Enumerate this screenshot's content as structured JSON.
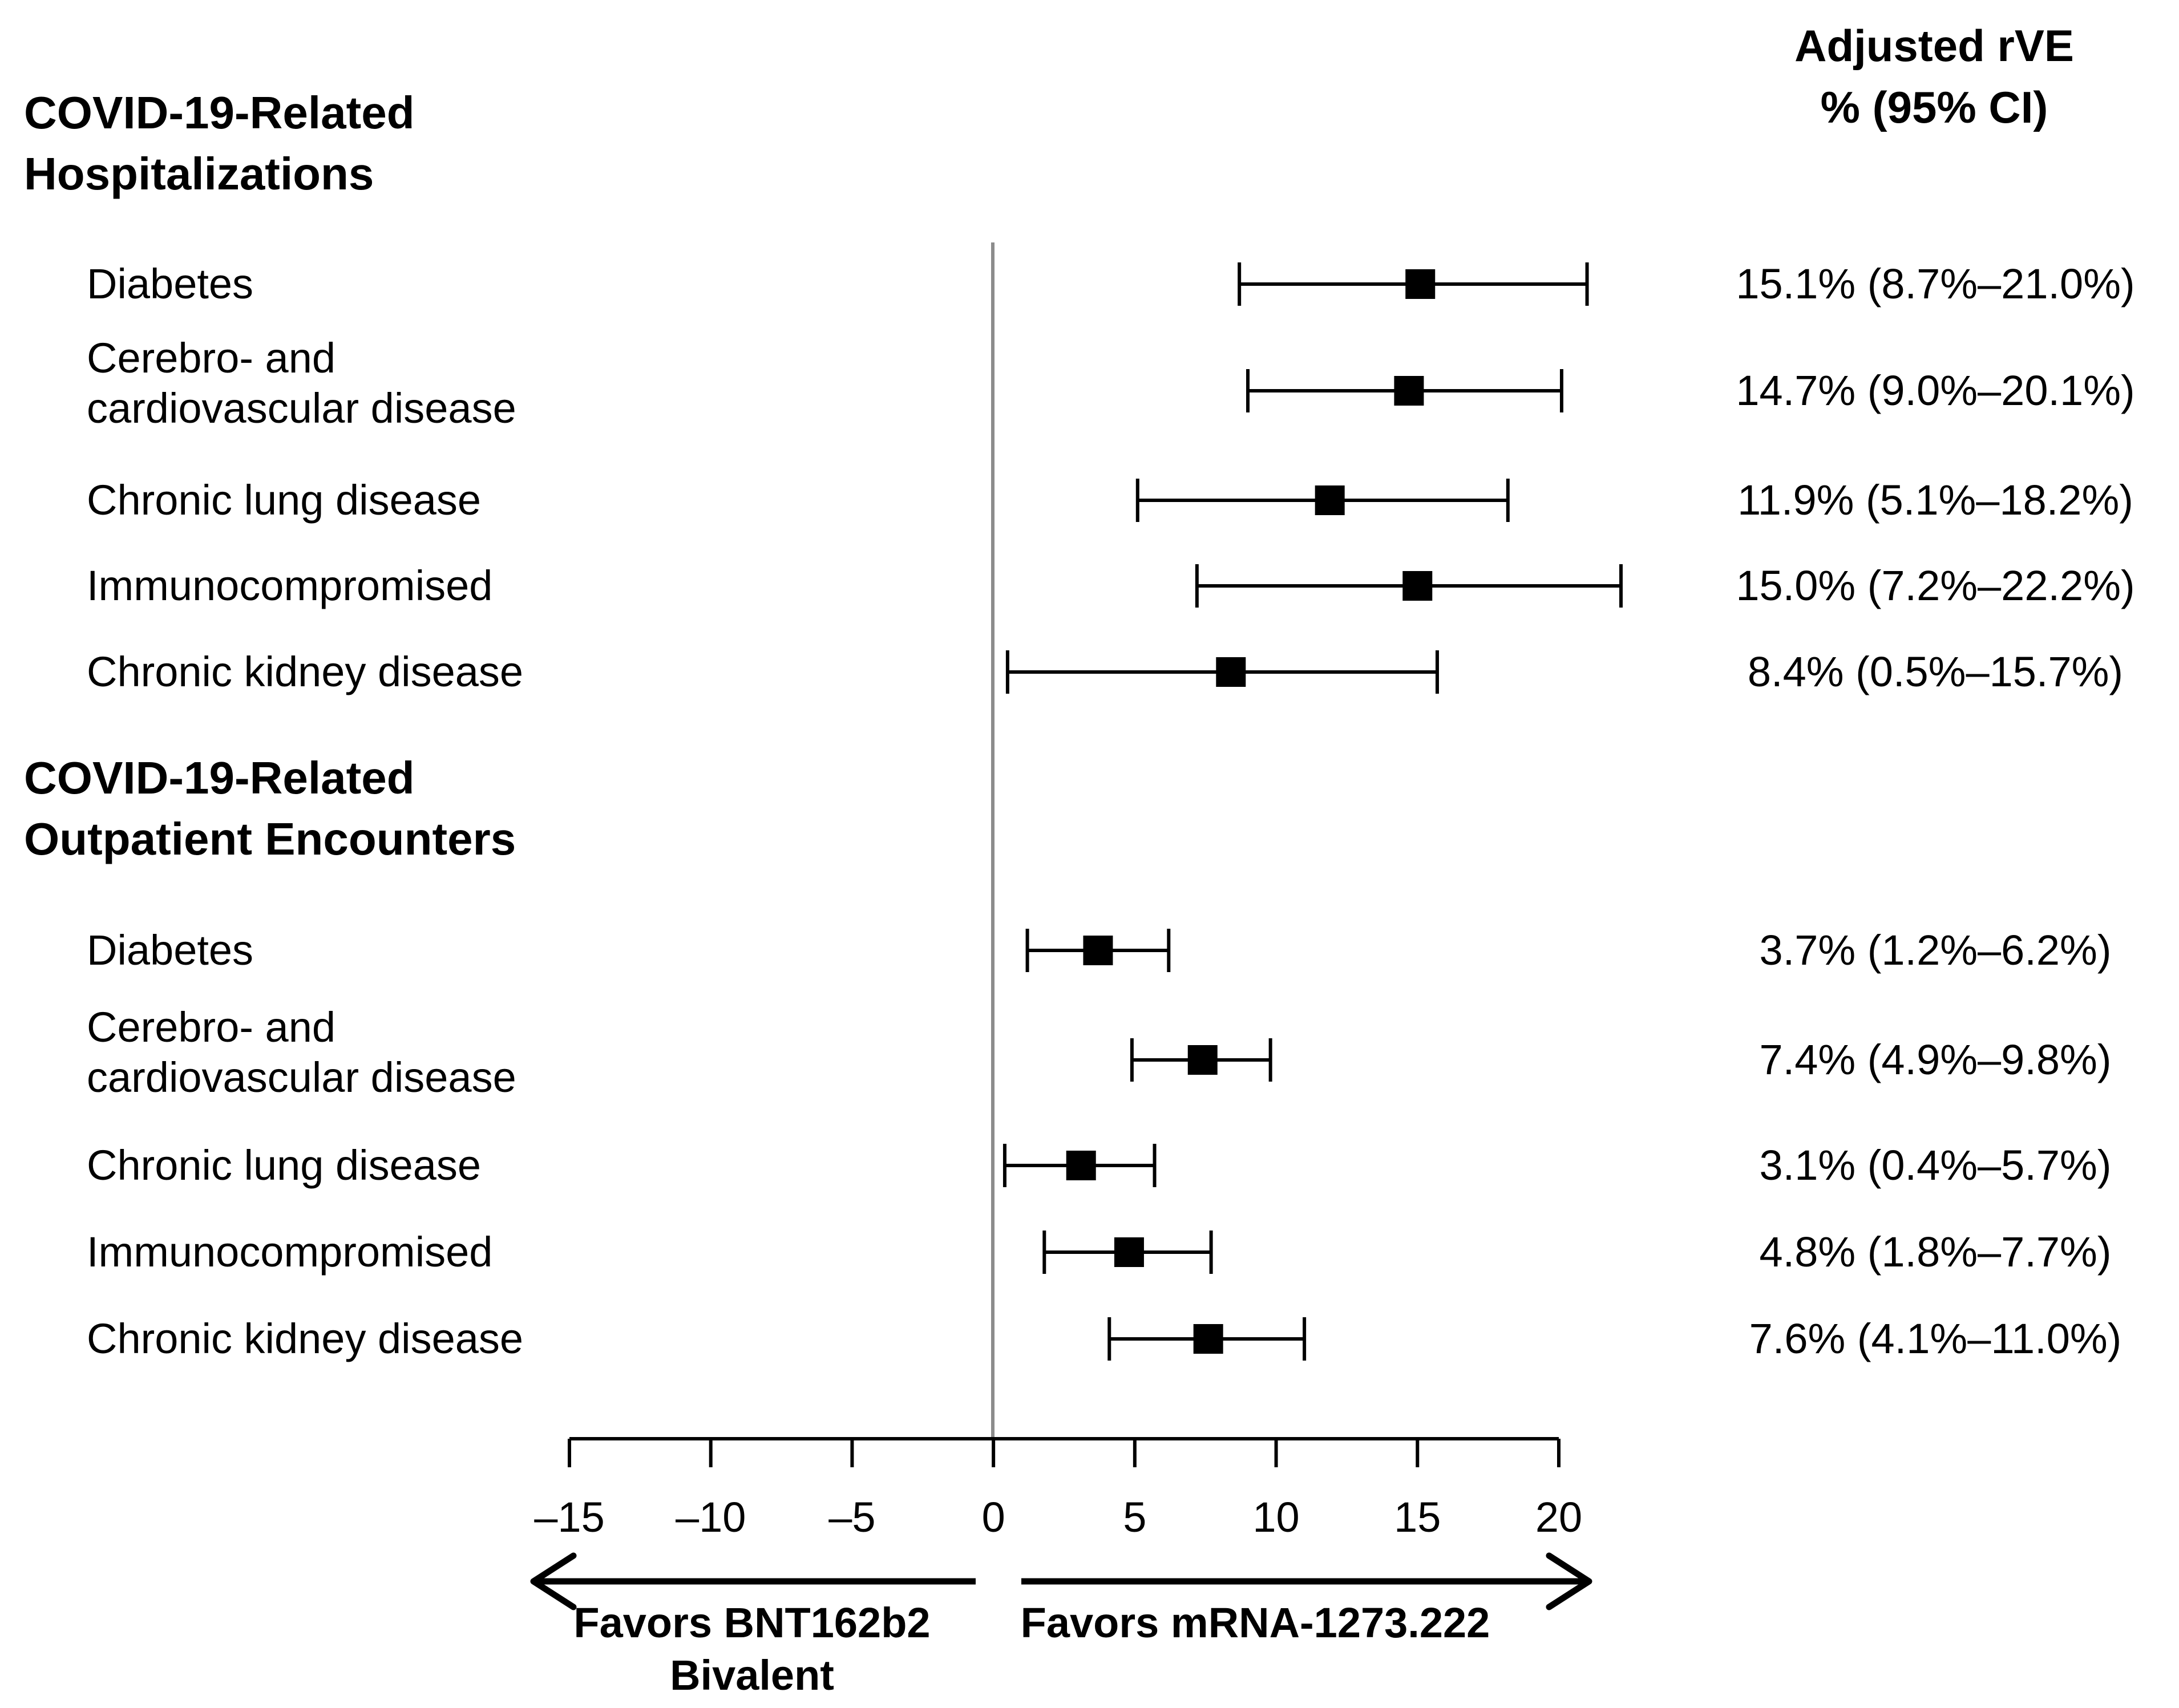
{
  "header": {
    "line1": "Adjusted rVE",
    "line2": "% (95% CI)"
  },
  "chart_data": {
    "type": "forest",
    "xlim": [
      -15,
      20
    ],
    "reference_line": 0,
    "x_ticks": [
      {
        "value": -15,
        "label": "–15"
      },
      {
        "value": -10,
        "label": "–10"
      },
      {
        "value": -5,
        "label": "–5"
      },
      {
        "value": 0,
        "label": "0"
      },
      {
        "value": 5,
        "label": "5"
      },
      {
        "value": 10,
        "label": "10"
      },
      {
        "value": 15,
        "label": "15"
      },
      {
        "value": 20,
        "label": "20"
      }
    ],
    "direction_labels": {
      "left": [
        "Favors BNT162b2",
        "Bivalent"
      ],
      "right": [
        "Favors mRNA-1273.222"
      ]
    },
    "groups": [
      {
        "title": [
          "COVID-19-Related",
          "Hospitalizations"
        ],
        "rows": [
          {
            "label": [
              "Diabetes"
            ],
            "estimate": 15.1,
            "lower": 8.7,
            "upper": 21.0,
            "text": "15.1% (8.7%–21.0%)"
          },
          {
            "label": [
              "Cerebro- and",
              "cardiovascular disease"
            ],
            "estimate": 14.7,
            "lower": 9.0,
            "upper": 20.1,
            "text": "14.7% (9.0%–20.1%)"
          },
          {
            "label": [
              "Chronic lung disease"
            ],
            "estimate": 11.9,
            "lower": 5.1,
            "upper": 18.2,
            "text": "11.9% (5.1%–18.2%)"
          },
          {
            "label": [
              "Immunocompromised"
            ],
            "estimate": 15.0,
            "lower": 7.2,
            "upper": 22.2,
            "text": "15.0% (7.2%–22.2%)"
          },
          {
            "label": [
              "Chronic kidney disease"
            ],
            "estimate": 8.4,
            "lower": 0.5,
            "upper": 15.7,
            "text": "8.4% (0.5%–15.7%)"
          }
        ]
      },
      {
        "title": [
          "COVID-19-Related",
          "Outpatient Encounters"
        ],
        "rows": [
          {
            "label": [
              "Diabetes"
            ],
            "estimate": 3.7,
            "lower": 1.2,
            "upper": 6.2,
            "text": "3.7% (1.2%–6.2%)"
          },
          {
            "label": [
              "Cerebro- and",
              "cardiovascular disease"
            ],
            "estimate": 7.4,
            "lower": 4.9,
            "upper": 9.8,
            "text": "7.4% (4.9%–9.8%)"
          },
          {
            "label": [
              "Chronic lung disease"
            ],
            "estimate": 3.1,
            "lower": 0.4,
            "upper": 5.7,
            "text": "3.1% (0.4%–5.7%)"
          },
          {
            "label": [
              "Immunocompromised"
            ],
            "estimate": 4.8,
            "lower": 1.8,
            "upper": 7.7,
            "text": "4.8% (1.8%–7.7%)"
          },
          {
            "label": [
              "Chronic kidney disease"
            ],
            "estimate": 7.6,
            "lower": 4.1,
            "upper": 11.0,
            "text": "7.6% (4.1%–11.0%)"
          }
        ]
      }
    ]
  }
}
